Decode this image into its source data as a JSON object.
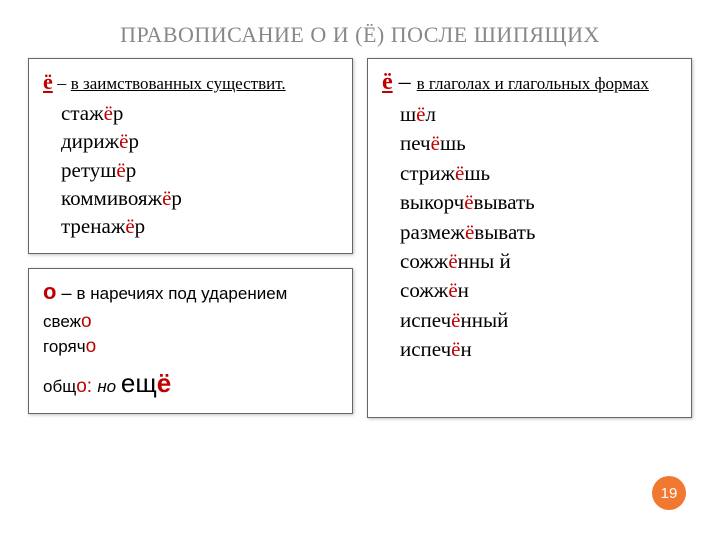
{
  "title": "ПРАВОПИСАНИЕ О И (Ё) ПОСЛЕ ШИПЯЩИХ",
  "box1": {
    "letter": "ё",
    "dash": " – ",
    "desc": "в заимствованных существит.",
    "examples": [
      {
        "pre": "стаж",
        "hl": "ё",
        "post": "р"
      },
      {
        "pre": "дириж",
        "hl": "ё",
        "post": "р"
      },
      {
        "pre": "ретуш",
        "hl": "ё",
        "post": "р"
      },
      {
        "pre": "коммивояж",
        "hl": "ё",
        "post": "р"
      },
      {
        "pre": "тренаж",
        "hl": "ё",
        "post": "р"
      }
    ]
  },
  "box2": {
    "letter": "ё",
    "dash": " – ",
    "desc": "в глаголах и глагольных формах",
    "examples": [
      {
        "pre": "ш",
        "hl": "ё",
        "post": "л"
      },
      {
        "pre": "печ",
        "hl": "ё",
        "post": "шь"
      },
      {
        "pre": "стриж",
        "hl": "ё",
        "post": "шь"
      },
      {
        "pre": "выкорч",
        "hl": "ё",
        "post": "вывать"
      },
      {
        "pre": "размеж",
        "hl": "ё",
        "post": "вывать"
      },
      {
        "pre": "сожж",
        "hl": "ё",
        "post": "нны   й"
      },
      {
        "pre": "сожж",
        "hl": "ё",
        "post": "н"
      },
      {
        "pre": "испеч",
        "hl": "ё",
        "post": "нный"
      },
      {
        "pre": "испеч",
        "hl": "ё",
        "post": "н"
      }
    ]
  },
  "box3": {
    "letter": "о",
    "dash": " – ",
    "desc": "в наречиях под ударением",
    "lines": [
      {
        "pre": "свеж",
        "hl": "о",
        "post": ""
      },
      {
        "pre": "горяч",
        "hl": "о",
        "post": ""
      }
    ],
    "last": {
      "pre": "общ",
      "hl1": "о",
      "colon": ": ",
      "but": "но ",
      "word": "ещ",
      "hl2": "ё"
    }
  },
  "page_number": "19",
  "colors": {
    "accent": "#c00000",
    "badge": "#f07830"
  }
}
